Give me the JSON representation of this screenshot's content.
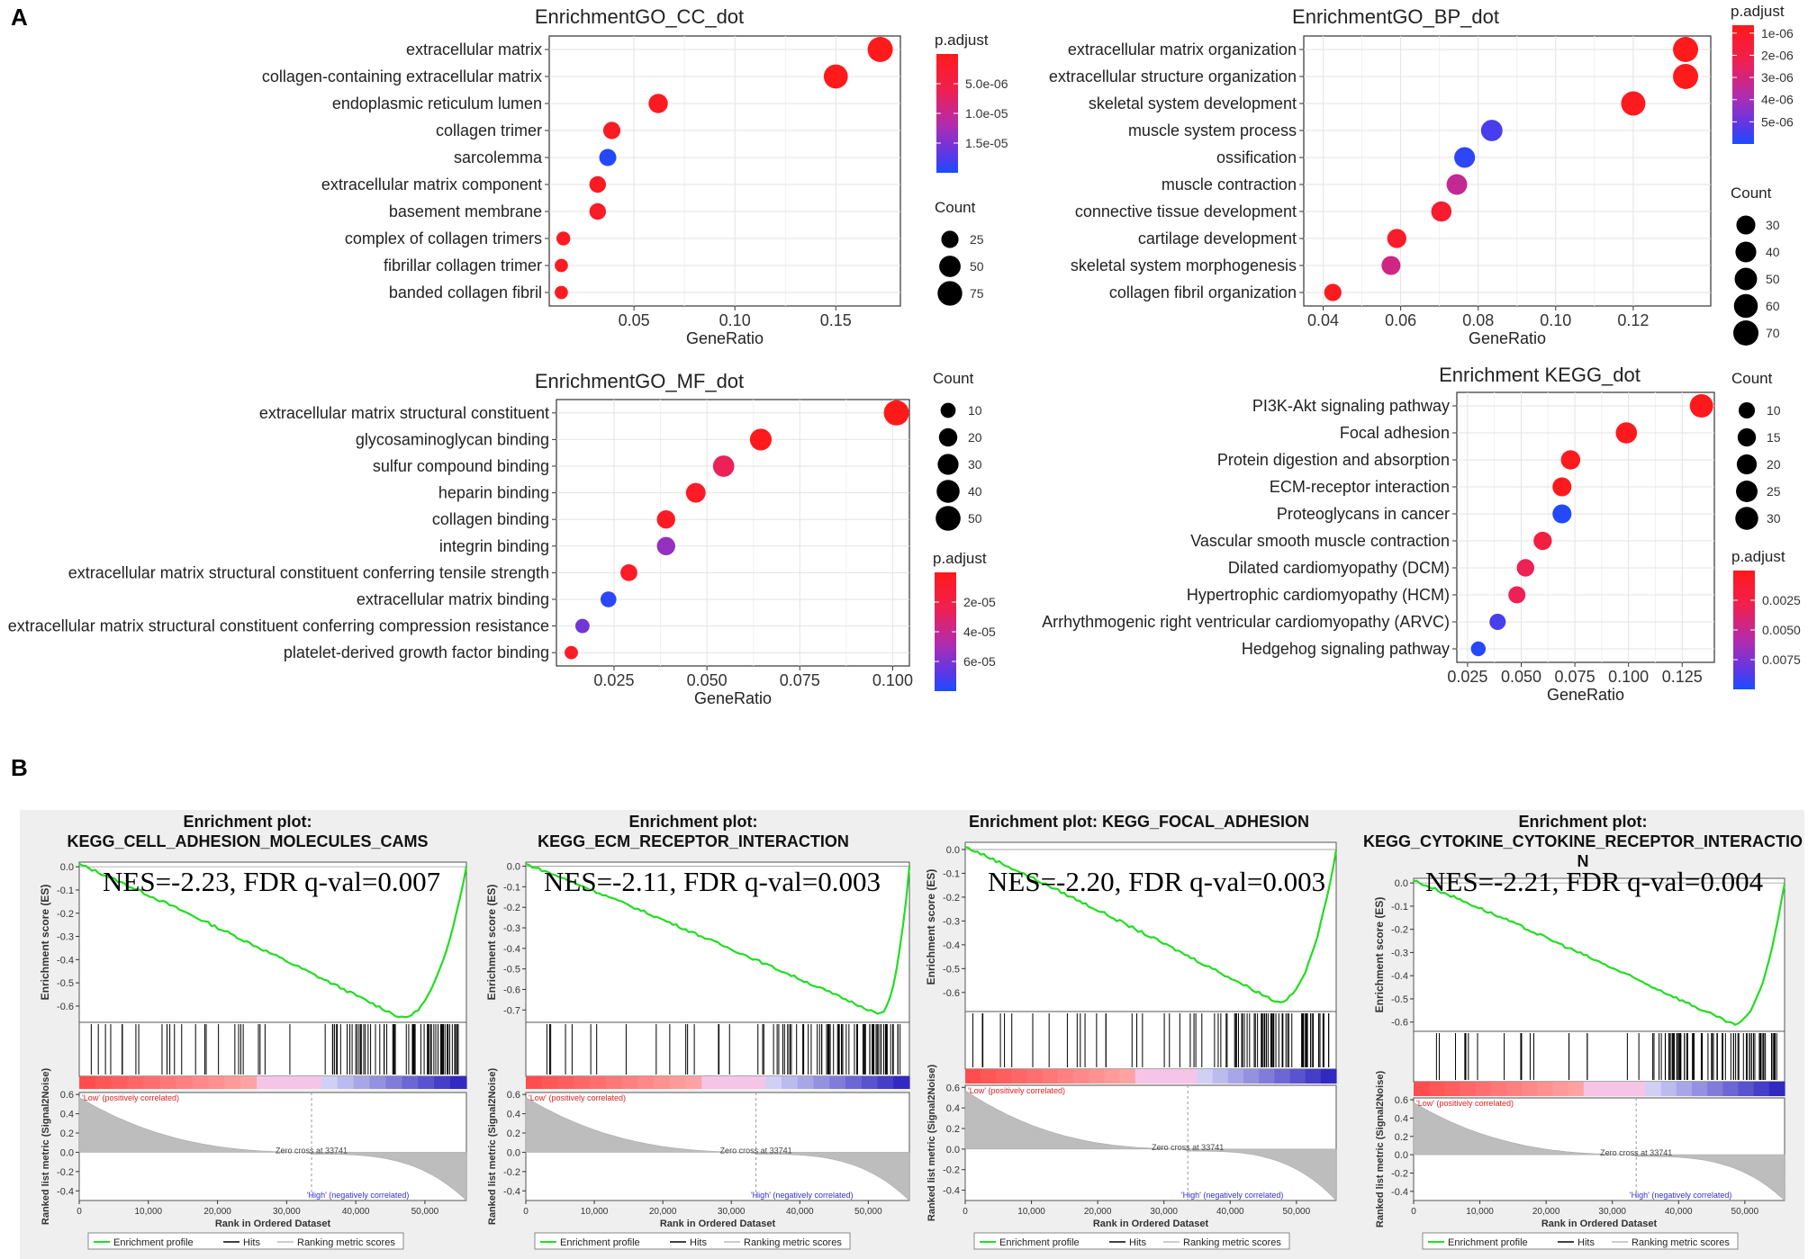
{
  "panels": {
    "a": "A",
    "b": "B"
  },
  "dotplots": [
    {
      "id": "cc",
      "title": "EnrichmentGO_CC_dot",
      "xlabel": "GeneRatio",
      "xlim": [
        0.008,
        0.182
      ],
      "xticks": [
        0.05,
        0.1,
        0.15
      ],
      "xtick_labels": [
        "0.05",
        "0.10",
        "0.15"
      ],
      "terms": [
        {
          "label": "extracellular matrix",
          "x": 0.172,
          "count": 80,
          "p": 1e-07
        },
        {
          "label": "collagen-containing extracellular matrix",
          "x": 0.15,
          "count": 70,
          "p": 1e-07
        },
        {
          "label": "endoplasmic reticulum lumen",
          "x": 0.062,
          "count": 36,
          "p": 5e-07
        },
        {
          "label": "collagen trimer",
          "x": 0.039,
          "count": 25,
          "p": 1e-06
        },
        {
          "label": "sarcolemma",
          "x": 0.037,
          "count": 24,
          "p": 1.85e-05
        },
        {
          "label": "extracellular matrix component",
          "x": 0.032,
          "count": 22,
          "p": 1e-06
        },
        {
          "label": "basement membrane",
          "x": 0.032,
          "count": 22,
          "p": 1.5e-06
        },
        {
          "label": "complex of collagen trimers",
          "x": 0.015,
          "count": 11,
          "p": 1e-06
        },
        {
          "label": "fibrillar collagen trimer",
          "x": 0.014,
          "count": 9,
          "p": 1e-06
        },
        {
          "label": "banded collagen fibril",
          "x": 0.014,
          "count": 9,
          "p": 1e-06
        }
      ],
      "size_legend": {
        "title": "Count",
        "labels": [
          "25",
          "50",
          "75"
        ],
        "values": [
          25,
          50,
          75
        ]
      },
      "color_legend": {
        "title": "p.adjust",
        "labels": [
          "5.0e-06",
          "1.0e-05",
          "1.5e-05"
        ]
      }
    },
    {
      "id": "bp",
      "title": "EnrichmentGO_BP_dot",
      "xlabel": "GeneRatio",
      "xlim": [
        0.035,
        0.14
      ],
      "xticks": [
        0.04,
        0.06,
        0.08,
        0.1,
        0.12
      ],
      "xtick_labels": [
        "0.04",
        "0.06",
        "0.08",
        "0.10",
        "0.12"
      ],
      "terms": [
        {
          "label": "extracellular matrix organization",
          "x": 0.1335,
          "count": 70,
          "p": 5e-08
        },
        {
          "label": "extracellular structure organization",
          "x": 0.1335,
          "count": 70,
          "p": 5e-08
        },
        {
          "label": "skeletal system development",
          "x": 0.12,
          "count": 63,
          "p": 2e-07
        },
        {
          "label": "muscle system process",
          "x": 0.0835,
          "count": 44,
          "p": 5.8e-06
        },
        {
          "label": "ossification",
          "x": 0.0765,
          "count": 40,
          "p": 6.2e-06
        },
        {
          "label": "muscle contraction",
          "x": 0.0745,
          "count": 39,
          "p": 3.3e-06
        },
        {
          "label": "connective tissue development",
          "x": 0.0705,
          "count": 37,
          "p": 8e-07
        },
        {
          "label": "cartilage development",
          "x": 0.059,
          "count": 31,
          "p": 6e-07
        },
        {
          "label": "skeletal system morphogenesis",
          "x": 0.0575,
          "count": 30,
          "p": 3e-06
        },
        {
          "label": "collagen fibril organization",
          "x": 0.0425,
          "count": 22,
          "p": 2e-07
        }
      ],
      "size_legend": {
        "title": "Count",
        "labels": [
          "30",
          "40",
          "50",
          "60",
          "70"
        ],
        "values": [
          30,
          40,
          50,
          60,
          70
        ]
      },
      "color_legend": {
        "title": "p.adjust",
        "labels": [
          "1e-06",
          "2e-06",
          "3e-06",
          "4e-06",
          "5e-06"
        ]
      }
    },
    {
      "id": "mf",
      "title": "EnrichmentGO_MF_dot",
      "xlabel": "GeneRatio",
      "xlim": [
        0.0095,
        0.1045
      ],
      "xticks": [
        0.025,
        0.05,
        0.075,
        0.1
      ],
      "xtick_labels": [
        "0.025",
        "0.050",
        "0.075",
        "0.100"
      ],
      "terms": [
        {
          "label": "extracellular matrix structural constituent",
          "x": 0.101,
          "count": 52,
          "p": 2e-07
        },
        {
          "label": "glycosaminoglycan binding",
          "x": 0.0645,
          "count": 34,
          "p": 1e-06
        },
        {
          "label": "sulfur compound binding",
          "x": 0.0545,
          "count": 32,
          "p": 2.5e-05
        },
        {
          "label": "heparin binding",
          "x": 0.047,
          "count": 25,
          "p": 5e-06
        },
        {
          "label": "collagen binding",
          "x": 0.039,
          "count": 20,
          "p": 4e-06
        },
        {
          "label": "integrin binding",
          "x": 0.039,
          "count": 20,
          "p": 5.2e-05
        },
        {
          "label": "extracellular matrix structural constituent conferring tensile strength",
          "x": 0.029,
          "count": 15,
          "p": 5e-06
        },
        {
          "label": "extracellular matrix binding",
          "x": 0.0235,
          "count": 12,
          "p": 7.4e-05
        },
        {
          "label": "extracellular matrix structural constituent conferring compression resistance",
          "x": 0.0165,
          "count": 8,
          "p": 6e-05
        },
        {
          "label": "platelet-derived growth factor binding",
          "x": 0.0135,
          "count": 6,
          "p": 5e-06
        }
      ],
      "size_legend": {
        "title": "Count",
        "labels": [
          "10",
          "20",
          "30",
          "40",
          "50"
        ],
        "values": [
          10,
          20,
          30,
          40,
          50
        ]
      },
      "color_legend": {
        "title": "p.adjust",
        "labels": [
          "2e-05",
          "4e-05",
          "6e-05"
        ]
      }
    },
    {
      "id": "kegg",
      "title": "Enrichment KEGG_dot",
      "xlabel": "GeneRatio",
      "xlim": [
        0.02,
        0.14
      ],
      "xticks": [
        0.025,
        0.05,
        0.075,
        0.1,
        0.125
      ],
      "xtick_labels": [
        "0.025",
        "0.050",
        "0.075",
        "0.100",
        "0.125"
      ],
      "terms": [
        {
          "label": "PI3K-Akt signaling pathway",
          "x": 0.134,
          "count": 32,
          "p": 0.0001
        },
        {
          "label": "Focal adhesion",
          "x": 0.099,
          "count": 24,
          "p": 0.0001
        },
        {
          "label": "Protein digestion and absorption",
          "x": 0.073,
          "count": 18,
          "p": 0.0003
        },
        {
          "label": "ECM-receptor interaction",
          "x": 0.069,
          "count": 17,
          "p": 0.0001
        },
        {
          "label": "Proteoglycans in cancer",
          "x": 0.069,
          "count": 17,
          "p": 0.0093
        },
        {
          "label": "Vascular smooth muscle contraction",
          "x": 0.06,
          "count": 15,
          "p": 0.002
        },
        {
          "label": "Dilated cardiomyopathy (DCM)",
          "x": 0.052,
          "count": 13,
          "p": 0.003
        },
        {
          "label": "Hypertrophic cardiomyopathy (HCM)",
          "x": 0.048,
          "count": 12,
          "p": 0.003
        },
        {
          "label": "Arrhythmogenic right ventricular cardiomyopathy (ARVC)",
          "x": 0.039,
          "count": 10,
          "p": 0.0085
        },
        {
          "label": "Hedgehog signaling pathway",
          "x": 0.03,
          "count": 7,
          "p": 0.0092
        }
      ],
      "size_legend": {
        "title": "Count",
        "labels": [
          "10",
          "15",
          "20",
          "25",
          "30"
        ],
        "values": [
          10,
          15,
          20,
          25,
          30
        ]
      },
      "color_legend": {
        "title": "p.adjust",
        "labels": [
          "0.0025",
          "0.0050",
          "0.0075"
        ]
      }
    }
  ],
  "gsea_common": {
    "es_ylabel": "Enrichment score (ES)",
    "rank_ylabel": "Ranked list metric (Signal2Noise)",
    "xlabel": "Rank in Ordered Dataset",
    "xticks": [
      "0",
      "10,000",
      "20,000",
      "30,000",
      "40,000",
      "50,000"
    ],
    "rank_ticks": [
      "0.6",
      "0.4",
      "0.2",
      "0.0",
      "-0.2",
      "-0.4"
    ],
    "low_label": "'Low' (positively correlated)",
    "high_label": "'High' (negatively correlated)",
    "zero_cross": "Zero cross at 33741",
    "legend": [
      "Enrichment profile",
      "Hits",
      "Ranking metric scores"
    ]
  },
  "gsea": [
    {
      "title": "Enrichment plot:\nKEGG_CELL_ADHESION_MOLECULES_CAMS",
      "nes": "NES=-2.23, FDR q-val=0.007",
      "es_ticks": [
        "0.0",
        "-0.1",
        "-0.2",
        "-0.3",
        "-0.4",
        "-0.5",
        "-0.6"
      ],
      "es_range": [
        0.02,
        -0.67
      ],
      "min_es": -0.65,
      "min_rank": 0.83
    },
    {
      "title": "Enrichment plot:\nKEGG_ECM_RECEPTOR_INTERACTION",
      "nes": "NES=-2.11, FDR q-val=0.003",
      "es_ticks": [
        "0.0",
        "-0.1",
        "-0.2",
        "-0.3",
        "-0.4",
        "-0.5",
        "-0.6",
        "-0.7"
      ],
      "es_range": [
        0.02,
        -0.76
      ],
      "min_es": -0.72,
      "min_rank": 0.92
    },
    {
      "title": "Enrichment plot: KEGG_FOCAL_ADHESION",
      "nes": "NES=-2.20, FDR q-val=0.003",
      "es_ticks": [
        "0.0",
        "-0.1",
        "-0.2",
        "-0.3",
        "-0.4",
        "-0.5",
        "-0.6"
      ],
      "es_range": [
        0.03,
        -0.68
      ],
      "min_es": -0.64,
      "min_rank": 0.84
    },
    {
      "title": "Enrichment plot:\nKEGG_CYTOKINE_CYTOKINE_RECEPTOR_INTERACTIO\nN",
      "nes": "NES=-2.21, FDR q-val=0.004",
      "es_ticks": [
        "0.0",
        "-0.1",
        "-0.2",
        "-0.3",
        "-0.4",
        "-0.5",
        "-0.6"
      ],
      "es_range": [
        0.02,
        -0.64
      ],
      "min_es": -0.61,
      "min_rank": 0.86
    }
  ]
}
